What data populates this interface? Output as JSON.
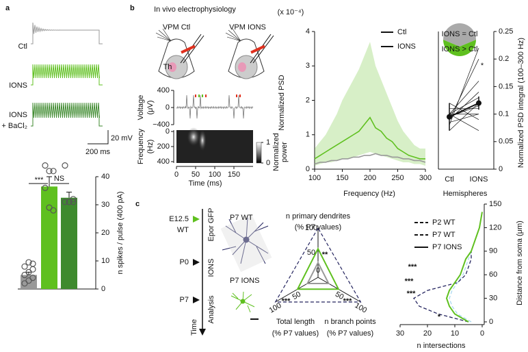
{
  "panel_labels": [
    "a",
    "b",
    "c"
  ],
  "chart_data": [
    {
      "type": "bar",
      "traces": [
        {
          "name": "Ctl",
          "color": "#999999"
        },
        {
          "name": "IONS",
          "color": "#5fc01f"
        },
        {
          "name": [
            "IONS",
            "+ BaCl₂"
          ],
          "color": "#3e8a2e"
        }
      ],
      "scale_labels": [
        "20 mV",
        "200 ms"
      ],
      "categories": [
        null,
        null,
        null
      ],
      "values": [
        5,
        36.5,
        32.5
      ],
      "errors": [
        1,
        3.5,
        2
      ],
      "colors": [
        "#999999",
        "#5fc01f",
        "#3e8a2e"
      ],
      "points": [
        [
          2,
          3,
          4,
          5,
          6,
          7,
          8,
          9.5,
          9
        ],
        [
          44,
          42,
          42,
          36,
          29,
          28
        ],
        [
          44,
          31,
          31,
          31,
          31,
          32
        ]
      ],
      "ylim": [
        0,
        40
      ],
      "yticks": [
        0,
        10,
        20,
        30,
        40
      ],
      "y_label": "n spikes / pulse (400 pA)",
      "annotations": [
        "***",
        "NS"
      ]
    },
    {
      "type": "trace",
      "title": "In vivo electrophysiology",
      "conditions": [
        "VPM Ctl",
        "VPM IONS"
      ],
      "region_label": "Th",
      "y_label": [
        "Voltage",
        "(μV)"
      ],
      "ylim": [
        -400,
        400
      ],
      "yticks": [
        {
          "value": -400,
          "label": "−400"
        },
        0,
        400
      ],
      "y2_label": [
        "Frequency",
        "(Hz)"
      ],
      "y2lim": [
        0,
        400
      ],
      "y2ticks": [
        0,
        200,
        400
      ],
      "colorbar_label": [
        "Normalized",
        "power"
      ],
      "colorbar_lim": [
        0,
        1
      ],
      "colorbar_ticks": [
        0,
        1
      ],
      "xlim": [
        0,
        200
      ],
      "xticks": [
        0,
        50,
        100,
        150
      ],
      "x_label": "Time (ms)"
    },
    {
      "type": "line",
      "y_unit": "(x 10⁻⁴)",
      "y_label": "Normalized PSD",
      "x_label": "Frequency (Hz)",
      "x": [
        100,
        110,
        120,
        130,
        140,
        150,
        160,
        170,
        180,
        190,
        200,
        210,
        220,
        230,
        240,
        250,
        260,
        270,
        280,
        290,
        300
      ],
      "xlim": [
        100,
        300
      ],
      "xticks": [
        100,
        150,
        200,
        250,
        300
      ],
      "ylim": [
        0,
        4
      ],
      "yticks": [
        0,
        1,
        2,
        3,
        4
      ],
      "series": [
        {
          "name": "Ctl",
          "color": "#999999",
          "values": [
            0.15,
            0.2,
            0.2,
            0.25,
            0.25,
            0.3,
            0.3,
            0.35,
            0.35,
            0.4,
            0.4,
            0.45,
            0.4,
            0.4,
            0.35,
            0.35,
            0.3,
            0.3,
            0.25,
            0.25,
            0.2
          ]
        },
        {
          "name": "IONS",
          "color": "#5fc01f",
          "values": [
            0.3,
            0.4,
            0.5,
            0.6,
            0.7,
            0.8,
            0.9,
            1.0,
            1.1,
            1.3,
            1.5,
            1.2,
            1.1,
            0.9,
            0.8,
            0.6,
            0.5,
            0.4,
            0.35,
            0.3,
            0.3
          ],
          "upper": [
            0.6,
            0.8,
            1.0,
            1.3,
            1.6,
            2.0,
            2.3,
            2.6,
            2.9,
            3.3,
            3.7,
            3.0,
            2.6,
            2.2,
            1.8,
            1.4,
            1.1,
            0.9,
            0.7,
            0.6,
            0.6
          ],
          "lower": [
            0.1,
            0.15,
            0.2,
            0.2,
            0.25,
            0.3,
            0.3,
            0.35,
            0.4,
            0.45,
            0.5,
            0.45,
            0.4,
            0.35,
            0.3,
            0.25,
            0.2,
            0.2,
            0.15,
            0.15,
            0.1
          ]
        }
      ]
    },
    {
      "type": "paired",
      "categories": [
        "Ctl",
        "IONS"
      ],
      "x_label": "Hemispheres",
      "y_label": "Normalized PSD integral (100–300 Hz)",
      "ylim": [
        0,
        0.25
      ],
      "yticks": [
        0,
        0.05,
        0.1,
        0.15,
        0.2,
        0.25
      ],
      "means": [
        0.095,
        0.12
      ],
      "errors": [
        0.025,
        0.012
      ],
      "pairs": {
        "Ctl": [
          0.08,
          0.09,
          0.1,
          0.1,
          0.11,
          0.12,
          0.085,
          0.07,
          0.09,
          0.1,
          0.095,
          0.1
        ],
        "IONS": [
          0.22,
          0.2,
          0.16,
          0.13,
          0.11,
          0.09,
          0.1,
          0.12,
          0.14,
          0.1,
          0.115,
          0.07
        ]
      },
      "annotations": [
        "*"
      ],
      "inset_labels": [
        "IONS = Ctl",
        "IONS > Ctl"
      ]
    },
    {
      "type": "diagram",
      "stages": [
        {
          "label": [
            "E12.5",
            "WT"
          ],
          "event": "Epor GFP"
        },
        {
          "label": [
            "P0"
          ],
          "event": "IONS"
        },
        {
          "label": [
            "P7"
          ],
          "event": "Analysis"
        }
      ],
      "axis_label": "Time",
      "neuron_labels": [
        "P7 WT",
        "P7 IONS"
      ]
    },
    {
      "type": "radar",
      "axes": [
        {
          "label": [
            "n primary dendrites",
            "(% P7 values)"
          ]
        },
        {
          "label": [
            "Total length",
            "(% P7 values)"
          ]
        },
        {
          "label": [
            "n branch points",
            "(% P7 values)"
          ]
        }
      ],
      "rlim": [
        0,
        100
      ],
      "ticks": [
        0,
        50,
        100
      ],
      "series": [
        {
          "color": "#999999",
          "values": [
            30,
            25,
            25
          ]
        },
        {
          "name": "P7 WT",
          "color": "#23235e",
          "dashed": true,
          "values": [
            100,
            100,
            100
          ]
        },
        {
          "name": "P7 IONS",
          "color": "#5fc01f",
          "values": [
            58,
            48,
            48
          ]
        }
      ],
      "annotations": [
        "**",
        "***",
        "***"
      ]
    },
    {
      "type": "line",
      "y": [
        0,
        10,
        20,
        30,
        40,
        50,
        60,
        70,
        80,
        90,
        100,
        110,
        120,
        130,
        140
      ],
      "ylim": [
        0,
        150
      ],
      "yticks": [
        0,
        30,
        60,
        90,
        120,
        150
      ],
      "xlim": [
        30,
        0
      ],
      "xticks": [
        30,
        20,
        10,
        0
      ],
      "x_label": "n intersections",
      "y_label": "Distance from soma (μm)",
      "series": [
        {
          "name": "P2 WT",
          "color": "#a9d8ef",
          "dashed": true,
          "values": [
            4,
            9,
            11,
            12,
            11,
            9,
            7,
            6,
            5,
            4,
            3,
            2,
            1,
            0.5,
            0
          ]
        },
        {
          "name": "P7 WT",
          "color": "#23235e",
          "dashed": true,
          "values": [
            5,
            16,
            23,
            25,
            20,
            9,
            6,
            5,
            4,
            4,
            3,
            2,
            1,
            0.5,
            0
          ]
        },
        {
          "name": "P7 IONS",
          "color": "#5fc01f",
          "values": [
            5,
            10,
            12,
            13,
            12,
            10,
            8,
            7,
            6,
            4,
            3,
            2,
            1,
            0.5,
            0
          ]
        }
      ],
      "annotations": [
        "***",
        "***",
        "***",
        "*"
      ]
    }
  ]
}
